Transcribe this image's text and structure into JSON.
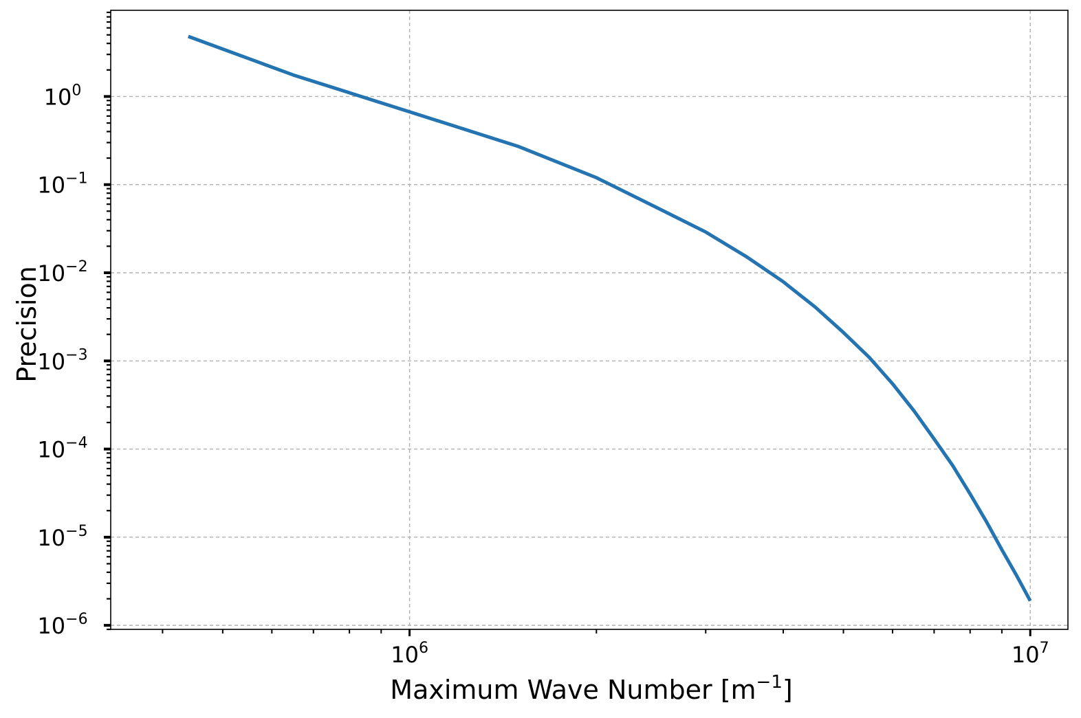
{
  "chart_data": {
    "type": "line",
    "xlabel": "Maximum Wave Number [m",
    "xlabel_sup": "−1",
    "xlabel_suffix": "]",
    "ylabel": "Precision",
    "xscale": "log",
    "yscale": "log",
    "xlim": [
      330000,
      11500000
    ],
    "ylim": [
      9e-07,
      9.5
    ],
    "grid": true,
    "x_ticks": [
      {
        "value": 1000000,
        "base": "10",
        "exp": "6"
      },
      {
        "value": 10000000,
        "base": "10",
        "exp": "7"
      }
    ],
    "y_ticks": [
      {
        "value": 1,
        "base": "10",
        "exp": "0"
      },
      {
        "value": 0.1,
        "base": "10",
        "exp": "−1"
      },
      {
        "value": 0.01,
        "base": "10",
        "exp": "−2"
      },
      {
        "value": 0.001,
        "base": "10",
        "exp": "−3"
      },
      {
        "value": 0.0001,
        "base": "10",
        "exp": "−4"
      },
      {
        "value": 1e-05,
        "base": "10",
        "exp": "−5"
      },
      {
        "value": 1e-06,
        "base": "10",
        "exp": "−6"
      }
    ],
    "series": [
      {
        "color": "#2474b1",
        "x": [
          440000,
          650000,
          1000000,
          1500000,
          2000000,
          2500000,
          3000000,
          3500000,
          4000000,
          4500000,
          5000000,
          5500000,
          6000000,
          6500000,
          7000000,
          7500000,
          8000000,
          8500000,
          9000000,
          9500000,
          10000000
        ],
        "y": [
          4.8,
          1.75,
          0.67,
          0.27,
          0.12,
          0.055,
          0.029,
          0.015,
          0.0079,
          0.0041,
          0.0021,
          0.0011,
          0.00055,
          0.00027,
          0.00013,
          6.5e-05,
          3.1e-05,
          1.5e-05,
          7.2e-06,
          3.7e-06,
          1.9e-06
        ]
      }
    ]
  }
}
